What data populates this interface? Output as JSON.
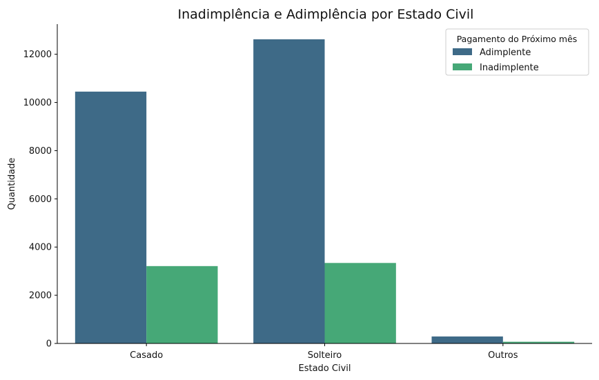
{
  "chart_data": {
    "type": "bar",
    "title": "Inadimplência e Adimplência por Estado Civil",
    "xlabel": "Estado Civil",
    "ylabel": "Quantidade",
    "categories": [
      "Casado",
      "Solteiro",
      "Outros"
    ],
    "ylim": [
      0,
      13250
    ],
    "yticks": [
      0,
      2000,
      4000,
      6000,
      8000,
      10000,
      12000
    ],
    "grid": false,
    "legend": {
      "title": "Pagamento do Próximo mês",
      "placement": "top-right"
    },
    "series": [
      {
        "name": "Adimplente",
        "color": "#3e6a87",
        "values": [
          10450,
          12620,
          290
        ]
      },
      {
        "name": "Inadimplente",
        "color": "#46a877",
        "values": [
          3210,
          3340,
          70
        ]
      }
    ]
  }
}
